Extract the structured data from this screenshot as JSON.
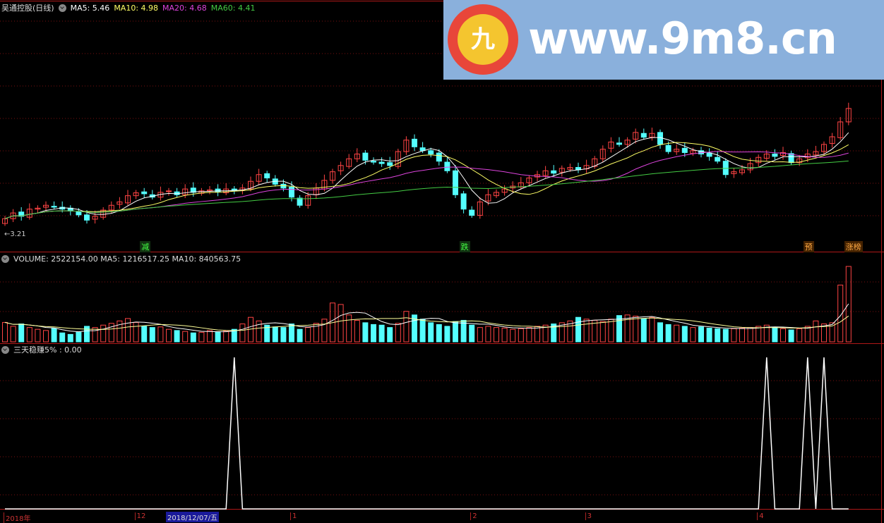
{
  "main_pane": {
    "title": "吴通控股(日线)",
    "ma_labels": [
      {
        "text": "MA5: 5.46",
        "color": "#ffffff"
      },
      {
        "text": "MA10: 4.98",
        "color": "#ffff66"
      },
      {
        "text": "MA20: 4.68",
        "color": "#dd44dd"
      },
      {
        "text": "MA60: 4.41",
        "color": "#44cc44"
      }
    ],
    "low_label": "←3.21",
    "markers": [
      {
        "text": "减",
        "index": 17,
        "color": "#44ff44",
        "bg": "#113311"
      },
      {
        "text": "跌",
        "index": 56,
        "color": "#44ff44",
        "bg": "#113311"
      },
      {
        "text": "预",
        "index": 98,
        "color": "#ffaa44",
        "bg": "#442200"
      },
      {
        "text": "涨榜",
        "index": 103,
        "color": "#ffaa44",
        "bg": "#442200"
      }
    ]
  },
  "volume_pane": {
    "header": "VOLUME: 2522154.00  MA5: 1216517.25  MA10: 840563.75"
  },
  "indicator_pane": {
    "header": "三天稳赚5% : 0.00"
  },
  "time_axis": {
    "labels": [
      {
        "text": "2018年",
        "index": 0
      },
      {
        "text": "12",
        "index": 16
      },
      {
        "text": "1",
        "index": 35
      },
      {
        "text": "2",
        "index": 57
      },
      {
        "text": "3",
        "index": 71
      },
      {
        "text": "4",
        "index": 92
      }
    ],
    "cursor_date": "2018/12/07/五"
  },
  "watermark": {
    "text": "www.9m8.cn",
    "logo_text": "九"
  },
  "colors": {
    "up": "#ff4444",
    "down": "#54ffff",
    "grid": "#7a1010",
    "border": "#b01818"
  },
  "chart_data": {
    "type": "candlestick",
    "closes": [
      3.5,
      3.62,
      3.55,
      3.7,
      3.72,
      3.78,
      3.74,
      3.7,
      3.66,
      3.58,
      3.47,
      3.55,
      3.68,
      3.78,
      3.85,
      3.98,
      4.04,
      4.02,
      3.95,
      4.05,
      4.08,
      4.0,
      4.12,
      4.05,
      4.08,
      4.1,
      4.06,
      4.12,
      4.08,
      4.14,
      4.28,
      4.42,
      4.35,
      4.22,
      4.14,
      3.95,
      3.78,
      3.98,
      4.14,
      4.3,
      4.48,
      4.61,
      4.75,
      4.85,
      4.72,
      4.68,
      4.65,
      4.61,
      4.9,
      5.14,
      5.0,
      4.92,
      4.85,
      4.7,
      4.5,
      4.0,
      3.7,
      3.57,
      3.85,
      4.0,
      4.05,
      4.12,
      4.18,
      4.25,
      4.35,
      4.42,
      4.5,
      4.45,
      4.55,
      4.57,
      4.52,
      4.61,
      4.75,
      4.95,
      5.1,
      5.05,
      5.14,
      5.3,
      5.2,
      5.28,
      5.05,
      4.9,
      4.95,
      4.88,
      4.92,
      4.85,
      4.8,
      4.7,
      4.42,
      4.48,
      4.52,
      4.65,
      4.78,
      4.85,
      4.8,
      4.88,
      4.67,
      4.75,
      4.85,
      4.9,
      5.05,
      5.21,
      5.52,
      5.8
    ],
    "volumes": [
      650,
      520,
      600,
      480,
      420,
      380,
      450,
      300,
      250,
      320,
      520,
      480,
      560,
      620,
      700,
      780,
      650,
      520,
      480,
      500,
      420,
      380,
      350,
      300,
      320,
      380,
      340,
      360,
      420,
      600,
      820,
      700,
      560,
      500,
      480,
      600,
      420,
      480,
      620,
      760,
      1300,
      1250,
      900,
      720,
      640,
      580,
      560,
      480,
      620,
      1020,
      900,
      760,
      640,
      580,
      520,
      680,
      720,
      560,
      480,
      520,
      480,
      460,
      420,
      440,
      480,
      520,
      560,
      600,
      640,
      700,
      820,
      760,
      720,
      680,
      760,
      880,
      900,
      860,
      780,
      820,
      640,
      580,
      560,
      520,
      480,
      500,
      460,
      440,
      420,
      440,
      460,
      480,
      520,
      560,
      480,
      440,
      400,
      440,
      520,
      700,
      600,
      640,
      1900,
      2522
    ],
    "indicator": [
      0,
      0,
      0,
      0,
      0,
      0,
      0,
      0,
      0,
      0,
      0,
      0,
      0,
      0,
      0,
      0,
      0,
      0,
      0,
      0,
      0,
      0,
      0,
      0,
      0,
      0,
      0,
      0,
      1,
      0,
      0,
      0,
      0,
      0,
      0,
      0,
      0,
      0,
      0,
      0,
      0,
      0,
      0,
      0,
      0,
      0,
      0,
      0,
      0,
      0,
      0,
      0,
      0,
      0,
      0,
      0,
      0,
      0,
      0,
      0,
      0,
      0,
      0,
      0,
      0,
      0,
      0,
      0,
      0,
      0,
      0,
      0,
      0,
      0,
      0,
      0,
      0,
      0,
      0,
      0,
      0,
      0,
      0,
      0,
      0,
      0,
      0,
      0,
      0,
      0,
      0,
      0,
      0,
      1,
      0,
      0,
      0,
      0,
      1,
      0,
      1,
      0,
      0,
      0
    ],
    "ma_periods": [
      5,
      10,
      20,
      60
    ],
    "price_low": 3.21
  }
}
